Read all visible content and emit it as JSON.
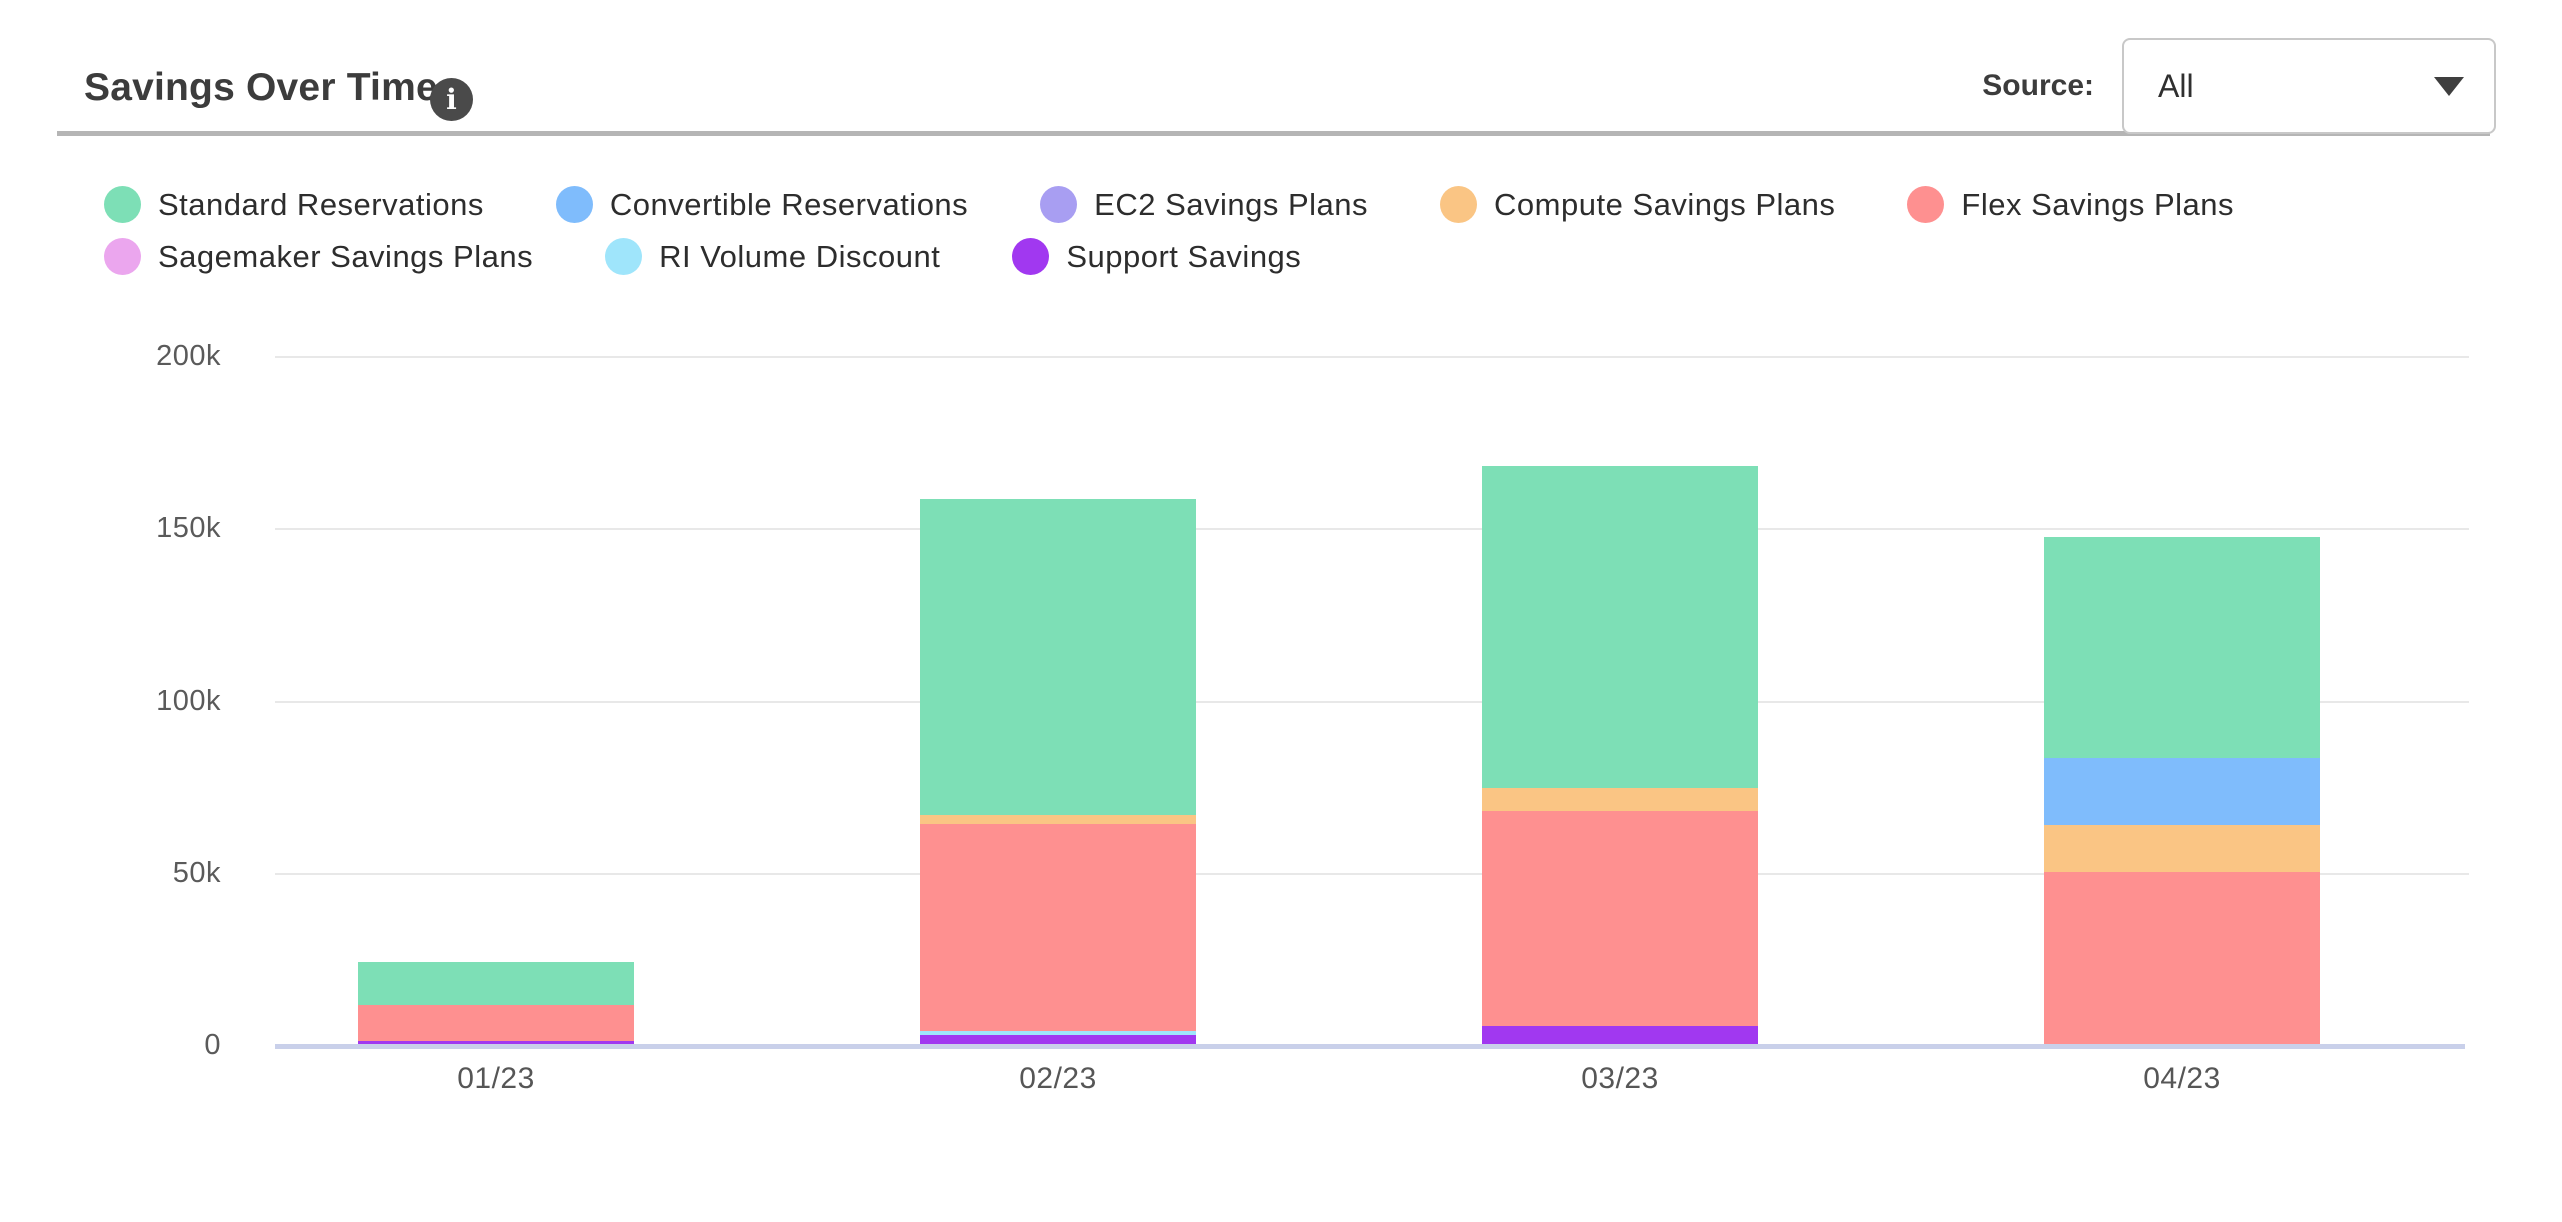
{
  "header": {
    "title": "Savings Over Time",
    "info_icon": "info-icon",
    "source_label": "Source:",
    "source_value": "All"
  },
  "colors": {
    "divider": "#b5b5b5",
    "gridline": "#e8e8e8",
    "axis_line": "#c9d0ea",
    "tick_text": "#5a5a5a",
    "title_text": "#3c3c3c",
    "info_icon_bg": "#4a4a4a",
    "select_border": "#c8c8c8"
  },
  "chart_data": {
    "type": "bar",
    "stacked": true,
    "title": "Savings Over Time",
    "xlabel": "",
    "ylabel": "",
    "categories": [
      "01/23",
      "02/23",
      "03/23",
      "04/23"
    ],
    "series": [
      {
        "name": "Standard Reservations",
        "color": "#7ddfb6",
        "values": [
          12400,
          91700,
          93600,
          64200
        ]
      },
      {
        "name": "Convertible Reservations",
        "color": "#7fbcfc",
        "values": [
          0,
          0,
          0,
          19400
        ]
      },
      {
        "name": "EC2 Savings Plans",
        "color": "#a89ef2",
        "values": [
          0,
          0,
          0,
          0
        ]
      },
      {
        "name": "Compute Savings Plans",
        "color": "#fac584",
        "values": [
          0,
          2600,
          6700,
          13600
        ]
      },
      {
        "name": "Flex Savings Plans",
        "color": "#fe9090",
        "values": [
          10300,
          60100,
          62400,
          50000
        ]
      },
      {
        "name": "Sagemaker Savings Plans",
        "color": "#eba6ee",
        "values": [
          0,
          0,
          0,
          0
        ]
      },
      {
        "name": "RI Volume Discount",
        "color": "#9fe5fb",
        "values": [
          0,
          1200,
          0,
          0
        ]
      },
      {
        "name": "Support Savings",
        "color": "#a138f0",
        "values": [
          1000,
          2700,
          5200,
          0
        ]
      }
    ],
    "stack_order_bottom_to_top": [
      "Support Savings",
      "RI Volume Discount",
      "Sagemaker Savings Plans",
      "Flex Savings Plans",
      "Compute Savings Plans",
      "EC2 Savings Plans",
      "Convertible Reservations",
      "Standard Reservations"
    ],
    "totals": [
      23700,
      158300,
      167900,
      147200
    ],
    "y_ticks": [
      {
        "label": "0",
        "value": 0
      },
      {
        "label": "50k",
        "value": 50000
      },
      {
        "label": "100k",
        "value": 100000
      },
      {
        "label": "150k",
        "value": 150000
      },
      {
        "label": "200k",
        "value": 200000
      }
    ],
    "ylim": [
      0,
      200000
    ],
    "grid": "horizontal",
    "legend_position": "top"
  }
}
